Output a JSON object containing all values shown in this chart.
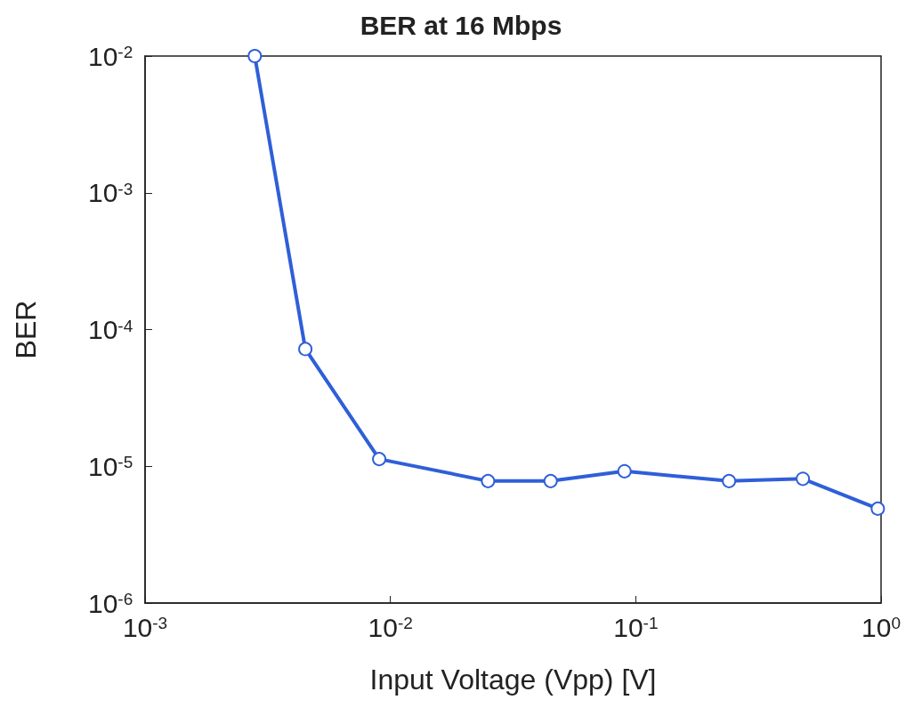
{
  "chart_data": {
    "type": "line",
    "title": "BER at 16 Mbps",
    "xlabel": "Input Voltage (Vpp) [V]",
    "ylabel": "BER",
    "x": [
      0.0028,
      0.0045,
      0.009,
      0.025,
      0.045,
      0.09,
      0.24,
      0.48,
      0.97
    ],
    "series": [
      {
        "color": "#2f5fd8",
        "values": [
          0.01,
          7.2e-05,
          1.13e-05,
          7.8e-06,
          7.8e-06,
          9.2e-06,
          7.8e-06,
          8.1e-06,
          4.9e-06
        ]
      }
    ],
    "log": "xy",
    "xlim": [
      0.001,
      1
    ],
    "ylim": [
      1e-06,
      0.01
    ],
    "xticks": [
      {
        "value": 0.001,
        "label": "10$^{-3}$"
      },
      {
        "value": 0.01,
        "label": "10$^{-2}$"
      },
      {
        "value": 0.1,
        "label": "10$^{-1}$"
      },
      {
        "value": 1,
        "label": "10$^{0}$"
      }
    ],
    "yticks": [
      {
        "value": 1e-06,
        "label": "10$^{-6}$"
      },
      {
        "value": 1e-05,
        "label": "10$^{-5}$"
      },
      {
        "value": 0.0001,
        "label": "10$^{-4}$"
      },
      {
        "value": 0.001,
        "label": "10$^{-3}$"
      },
      {
        "value": 0.01,
        "label": "10$^{-2}$"
      }
    ],
    "grid": false,
    "marker": "circle",
    "line_style": "solid"
  }
}
